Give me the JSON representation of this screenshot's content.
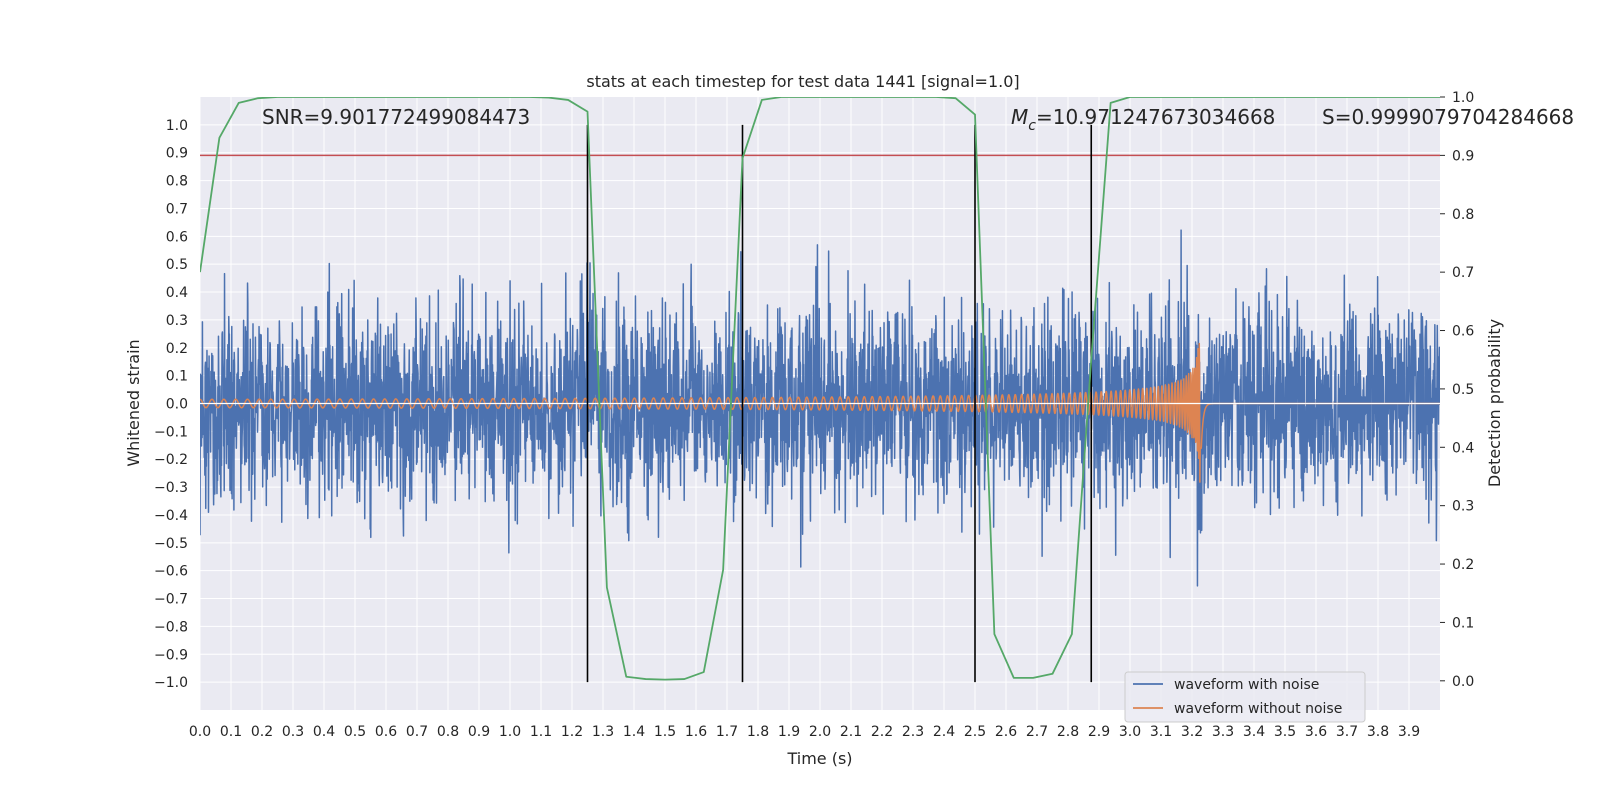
{
  "chart_data": {
    "type": "line",
    "title": "stats at each timestep for test data 1441 [signal=1.0]",
    "xlabel": "Time (s)",
    "ylabel": "Whitened strain",
    "y2label": "Detection probability",
    "xlim": [
      0.0,
      4.0
    ],
    "ylim": [
      -1.1,
      1.1
    ],
    "y2lim": [
      -0.05,
      1.0
    ],
    "grid": true,
    "legend_position": "lower-right",
    "x_ticks": [
      "0.0",
      "0.1",
      "0.2",
      "0.3",
      "0.4",
      "0.5",
      "0.6",
      "0.7",
      "0.8",
      "0.9",
      "1.0",
      "1.1",
      "1.2",
      "1.3",
      "1.4",
      "1.5",
      "1.6",
      "1.7",
      "1.8",
      "1.9",
      "2.0",
      "2.1",
      "2.2",
      "2.3",
      "2.4",
      "2.5",
      "2.6",
      "2.7",
      "2.8",
      "2.9",
      "3.0",
      "3.1",
      "3.2",
      "3.3",
      "3.4",
      "3.5",
      "3.6",
      "3.7",
      "3.8",
      "3.9"
    ],
    "y_ticks": [
      "−1.0",
      "−0.9",
      "−0.8",
      "−0.7",
      "−0.6",
      "−0.5",
      "−0.4",
      "−0.3",
      "−0.2",
      "−0.1",
      "0.0",
      "0.1",
      "0.2",
      "0.3",
      "0.4",
      "0.5",
      "0.6",
      "0.7",
      "0.8",
      "0.9",
      "1.0"
    ],
    "y2_ticks": [
      "0.0",
      "0.1",
      "0.2",
      "0.3",
      "0.4",
      "0.5",
      "0.6",
      "0.7",
      "0.8",
      "0.9",
      "1.0"
    ],
    "annotations": {
      "snr": "SNR=9.901772499084473",
      "mc": "=10.971247673034668",
      "mc_symbol": "M",
      "mc_subscript": "c",
      "s": "S=0.9999079704284668"
    },
    "threshold": {
      "axis": "right",
      "value": 0.9,
      "color": "#c44e52"
    },
    "vertical_lines": [
      1.25,
      1.75,
      2.5,
      2.875
    ],
    "series": [
      {
        "name": "waveform with noise",
        "color": "#4c72b0",
        "noise_std": 0.17,
        "approx_range": [
          -1.0,
          1.0
        ]
      },
      {
        "name": "waveform without noise",
        "color": "#dd8452",
        "chirp": {
          "merger_time": 3.23,
          "amplitude_start": 0.015,
          "amplitude_peak": 0.3,
          "frequency_start_hz": 20,
          "frequency_peak_hz": 250
        }
      },
      {
        "name": "detection probability",
        "axis": "right",
        "color": "#55a868",
        "x": [
          0.0,
          0.0625,
          0.125,
          0.1875,
          0.25,
          0.5,
          0.75,
          1.0,
          1.0625,
          1.125,
          1.1875,
          1.25,
          1.3125,
          1.375,
          1.4375,
          1.5,
          1.5625,
          1.625,
          1.6875,
          1.75,
          1.8125,
          1.875,
          1.9375,
          2.0,
          2.25,
          2.375,
          2.4375,
          2.5,
          2.5625,
          2.625,
          2.6875,
          2.75,
          2.8125,
          2.875,
          2.9375,
          3.0,
          3.25,
          3.5,
          3.75,
          4.0
        ],
        "values": [
          0.7,
          0.93,
          0.99,
          0.998,
          1.0,
          1.0,
          1.0,
          1.0,
          1.0,
          0.999,
          0.995,
          0.975,
          0.16,
          0.007,
          0.003,
          0.002,
          0.003,
          0.015,
          0.19,
          0.895,
          0.995,
          1.0,
          1.0,
          1.0,
          1.0,
          1.0,
          0.998,
          0.97,
          0.08,
          0.005,
          0.005,
          0.012,
          0.08,
          0.55,
          0.99,
          1.0,
          1.0,
          1.0,
          1.0,
          1.0
        ]
      }
    ]
  }
}
